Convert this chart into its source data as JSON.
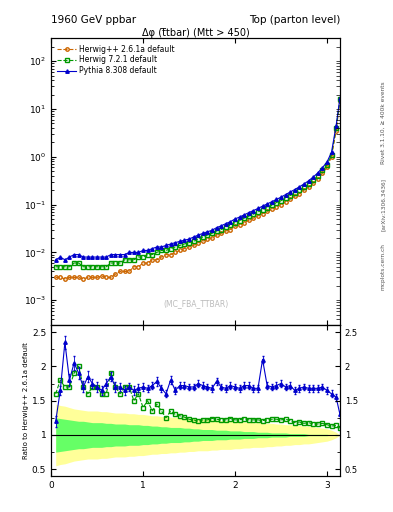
{
  "title_left": "1960 GeV ppbar",
  "title_right": "Top (parton level)",
  "plot_title": "Δφ (t̅tbar) (Mtt > 450)",
  "watermark": "(MC_FBA_TTBAR)",
  "right_label1": "Rivet 3.1.10, ≥ 400k events",
  "right_label2": "[arXiv:1306.3436]",
  "right_label3": "mcplots.cern.ch",
  "ylabel_ratio": "Ratio to Herwig++ 2.6.1a default",
  "xlim": [
    0,
    3.14159
  ],
  "ylim_main": [
    0.0003,
    300.0
  ],
  "ylim_ratio": [
    0.4,
    2.6
  ],
  "xticks": [
    0,
    1,
    2,
    3
  ],
  "legend_labels": [
    "Herwig++ 2.6.1a default",
    "Herwig 7.2.1 default",
    "Pythia 8.308 default"
  ],
  "herwig_pp_color": "#cc6600",
  "herwig7_color": "#009900",
  "pythia_color": "#0000cc",
  "band_green_inner": "#66ff66",
  "band_yellow_outer": "#ffff99",
  "x_data": [
    0.05,
    0.1,
    0.15,
    0.2,
    0.25,
    0.3,
    0.35,
    0.4,
    0.45,
    0.5,
    0.55,
    0.6,
    0.65,
    0.7,
    0.75,
    0.8,
    0.85,
    0.9,
    0.95,
    1.0,
    1.05,
    1.1,
    1.15,
    1.2,
    1.25,
    1.3,
    1.35,
    1.4,
    1.45,
    1.5,
    1.55,
    1.6,
    1.65,
    1.7,
    1.75,
    1.8,
    1.85,
    1.9,
    1.95,
    2.0,
    2.05,
    2.1,
    2.15,
    2.2,
    2.25,
    2.3,
    2.35,
    2.4,
    2.45,
    2.5,
    2.55,
    2.6,
    2.65,
    2.7,
    2.75,
    2.8,
    2.85,
    2.9,
    2.95,
    3.0,
    3.05,
    3.1,
    3.14159
  ],
  "herwig_pp_y": [
    0.003,
    0.003,
    0.0028,
    0.003,
    0.003,
    0.003,
    0.0028,
    0.003,
    0.003,
    0.003,
    0.0032,
    0.003,
    0.003,
    0.0035,
    0.004,
    0.004,
    0.004,
    0.005,
    0.005,
    0.006,
    0.006,
    0.007,
    0.007,
    0.008,
    0.009,
    0.009,
    0.01,
    0.011,
    0.012,
    0.013,
    0.014,
    0.016,
    0.017,
    0.019,
    0.02,
    0.023,
    0.025,
    0.028,
    0.03,
    0.035,
    0.038,
    0.042,
    0.047,
    0.052,
    0.058,
    0.065,
    0.072,
    0.08,
    0.09,
    0.1,
    0.115,
    0.13,
    0.15,
    0.17,
    0.2,
    0.23,
    0.28,
    0.35,
    0.45,
    0.6,
    1.0,
    3.5,
    15.0
  ],
  "herwig7_y": [
    0.005,
    0.005,
    0.005,
    0.005,
    0.006,
    0.006,
    0.005,
    0.005,
    0.005,
    0.005,
    0.005,
    0.005,
    0.006,
    0.006,
    0.006,
    0.007,
    0.007,
    0.007,
    0.008,
    0.008,
    0.009,
    0.009,
    0.01,
    0.011,
    0.011,
    0.012,
    0.013,
    0.014,
    0.015,
    0.016,
    0.017,
    0.019,
    0.021,
    0.023,
    0.025,
    0.028,
    0.03,
    0.034,
    0.037,
    0.042,
    0.046,
    0.052,
    0.057,
    0.063,
    0.07,
    0.078,
    0.087,
    0.097,
    0.11,
    0.12,
    0.14,
    0.155,
    0.175,
    0.2,
    0.23,
    0.27,
    0.32,
    0.4,
    0.52,
    0.68,
    1.1,
    4.0,
    16.0
  ],
  "pythia_y": [
    0.007,
    0.008,
    0.007,
    0.008,
    0.009,
    0.009,
    0.008,
    0.008,
    0.008,
    0.008,
    0.008,
    0.008,
    0.009,
    0.009,
    0.009,
    0.009,
    0.01,
    0.01,
    0.01,
    0.011,
    0.011,
    0.012,
    0.013,
    0.013,
    0.014,
    0.015,
    0.016,
    0.017,
    0.018,
    0.019,
    0.021,
    0.023,
    0.025,
    0.027,
    0.029,
    0.033,
    0.036,
    0.04,
    0.044,
    0.05,
    0.055,
    0.061,
    0.068,
    0.075,
    0.083,
    0.093,
    0.103,
    0.115,
    0.128,
    0.143,
    0.162,
    0.183,
    0.207,
    0.235,
    0.27,
    0.315,
    0.375,
    0.46,
    0.59,
    0.77,
    1.25,
    4.5,
    17.0
  ],
  "ratio_herwig7": [
    1.6,
    1.8,
    1.7,
    1.7,
    1.9,
    2.0,
    1.7,
    1.6,
    1.7,
    1.7,
    1.6,
    1.6,
    1.9,
    1.7,
    1.6,
    1.7,
    1.7,
    1.5,
    1.6,
    1.4,
    1.5,
    1.35,
    1.45,
    1.35,
    1.25,
    1.35,
    1.3,
    1.28,
    1.26,
    1.23,
    1.22,
    1.2,
    1.22,
    1.22,
    1.24,
    1.23,
    1.22,
    1.22,
    1.24,
    1.22,
    1.22,
    1.24,
    1.22,
    1.22,
    1.22,
    1.21,
    1.22,
    1.23,
    1.23,
    1.22,
    1.23,
    1.21,
    1.18,
    1.19,
    1.17,
    1.18,
    1.16,
    1.16,
    1.17,
    1.15,
    1.13,
    1.14,
    1.1
  ],
  "ratio_pythia": [
    1.2,
    1.65,
    2.35,
    1.8,
    2.05,
    1.9,
    1.7,
    1.85,
    1.75,
    1.7,
    1.65,
    1.75,
    1.85,
    1.7,
    1.7,
    1.65,
    1.7,
    1.65,
    1.68,
    1.7,
    1.68,
    1.72,
    1.78,
    1.68,
    1.6,
    1.8,
    1.65,
    1.72,
    1.72,
    1.7,
    1.7,
    1.75,
    1.72,
    1.7,
    1.68,
    1.78,
    1.7,
    1.68,
    1.72,
    1.7,
    1.68,
    1.72,
    1.72,
    1.68,
    1.68,
    2.1,
    1.72,
    1.7,
    1.72,
    1.75,
    1.7,
    1.72,
    1.65,
    1.68,
    1.7,
    1.68,
    1.68,
    1.68,
    1.7,
    1.65,
    1.6,
    1.55,
    1.3
  ],
  "ratio_pythia_err": [
    0.08,
    0.07,
    0.1,
    0.09,
    0.1,
    0.09,
    0.08,
    0.08,
    0.07,
    0.07,
    0.07,
    0.07,
    0.07,
    0.07,
    0.06,
    0.06,
    0.06,
    0.06,
    0.06,
    0.06,
    0.05,
    0.05,
    0.06,
    0.05,
    0.05,
    0.06,
    0.05,
    0.05,
    0.05,
    0.05,
    0.05,
    0.05,
    0.05,
    0.05,
    0.05,
    0.05,
    0.05,
    0.05,
    0.05,
    0.05,
    0.05,
    0.05,
    0.05,
    0.05,
    0.05,
    0.05,
    0.05,
    0.05,
    0.05,
    0.05,
    0.05,
    0.05,
    0.05,
    0.05,
    0.05,
    0.05,
    0.05,
    0.05,
    0.05,
    0.05,
    0.05,
    0.05,
    0.05
  ],
  "band_yellow_lo": [
    0.55,
    0.57,
    0.58,
    0.6,
    0.62,
    0.63,
    0.64,
    0.65,
    0.65,
    0.65,
    0.66,
    0.66,
    0.67,
    0.68,
    0.68,
    0.68,
    0.69,
    0.69,
    0.7,
    0.7,
    0.71,
    0.72,
    0.72,
    0.73,
    0.73,
    0.74,
    0.74,
    0.75,
    0.75,
    0.76,
    0.76,
    0.77,
    0.77,
    0.77,
    0.78,
    0.78,
    0.79,
    0.79,
    0.79,
    0.8,
    0.8,
    0.81,
    0.81,
    0.82,
    0.82,
    0.82,
    0.83,
    0.83,
    0.84,
    0.84,
    0.85,
    0.85,
    0.86,
    0.86,
    0.87,
    0.87,
    0.88,
    0.89,
    0.9,
    0.91,
    0.93,
    0.96,
    1.0
  ],
  "band_yellow_hi": [
    1.45,
    1.43,
    1.42,
    1.4,
    1.38,
    1.37,
    1.36,
    1.35,
    1.35,
    1.35,
    1.34,
    1.34,
    1.33,
    1.32,
    1.32,
    1.32,
    1.31,
    1.31,
    1.3,
    1.3,
    1.29,
    1.28,
    1.28,
    1.27,
    1.27,
    1.26,
    1.26,
    1.25,
    1.25,
    1.24,
    1.24,
    1.23,
    1.23,
    1.23,
    1.22,
    1.22,
    1.21,
    1.21,
    1.21,
    1.2,
    1.2,
    1.19,
    1.19,
    1.18,
    1.18,
    1.18,
    1.17,
    1.17,
    1.16,
    1.16,
    1.15,
    1.15,
    1.14,
    1.14,
    1.13,
    1.13,
    1.12,
    1.11,
    1.1,
    1.09,
    1.07,
    1.04,
    1.0
  ],
  "band_green_lo": [
    0.75,
    0.76,
    0.77,
    0.78,
    0.79,
    0.8,
    0.8,
    0.81,
    0.82,
    0.82,
    0.82,
    0.83,
    0.83,
    0.84,
    0.84,
    0.84,
    0.85,
    0.85,
    0.85,
    0.86,
    0.86,
    0.87,
    0.87,
    0.88,
    0.88,
    0.89,
    0.89,
    0.89,
    0.9,
    0.9,
    0.91,
    0.91,
    0.92,
    0.92,
    0.92,
    0.93,
    0.93,
    0.93,
    0.94,
    0.94,
    0.94,
    0.95,
    0.95,
    0.95,
    0.96,
    0.96,
    0.96,
    0.97,
    0.97,
    0.97,
    0.97,
    0.98,
    0.98,
    0.98,
    0.98,
    0.99,
    0.99,
    0.99,
    0.99,
    0.99,
    1.0,
    1.0,
    1.0
  ],
  "band_green_hi": [
    1.25,
    1.24,
    1.23,
    1.22,
    1.21,
    1.2,
    1.2,
    1.19,
    1.18,
    1.18,
    1.18,
    1.17,
    1.17,
    1.16,
    1.16,
    1.16,
    1.15,
    1.15,
    1.15,
    1.14,
    1.14,
    1.13,
    1.13,
    1.12,
    1.12,
    1.11,
    1.11,
    1.11,
    1.1,
    1.1,
    1.09,
    1.09,
    1.08,
    1.08,
    1.08,
    1.07,
    1.07,
    1.07,
    1.06,
    1.06,
    1.06,
    1.05,
    1.05,
    1.05,
    1.04,
    1.04,
    1.04,
    1.03,
    1.03,
    1.03,
    1.03,
    1.02,
    1.02,
    1.02,
    1.02,
    1.01,
    1.01,
    1.01,
    1.01,
    1.01,
    1.0,
    1.0,
    1.0
  ]
}
